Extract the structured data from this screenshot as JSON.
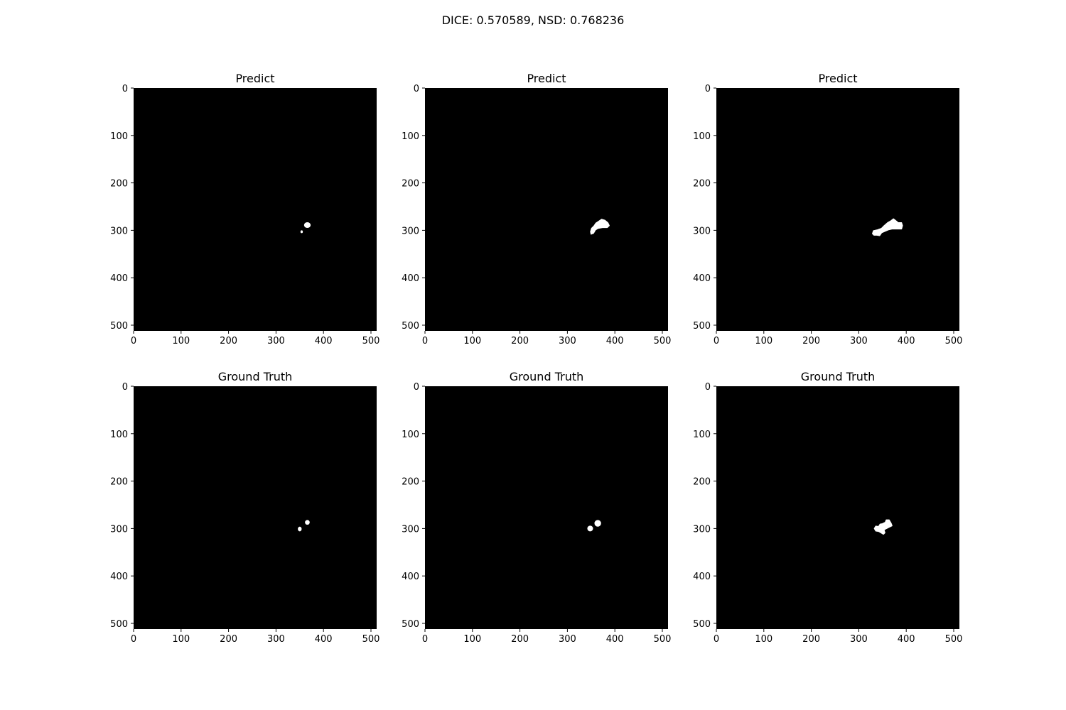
{
  "figure": {
    "suptitle": "DICE: 0.570589, NSD: 0.768236",
    "background_color": "#ffffff",
    "image_background": "#000000",
    "mask_color": "#ffffff"
  },
  "chart_data": [
    {
      "type": "image",
      "title": "Predict",
      "xlim": [
        0,
        512
      ],
      "ylim": [
        512,
        0
      ],
      "xticks": [
        0,
        100,
        200,
        300,
        400,
        500
      ],
      "yticks": [
        0,
        100,
        200,
        300,
        400,
        500
      ],
      "blobs": [
        {
          "shape": "ellipse",
          "cx": 366,
          "cy": 289,
          "rx": 7,
          "ry": 6
        },
        {
          "shape": "ellipse",
          "cx": 354,
          "cy": 303,
          "rx": 2.5,
          "ry": 3
        }
      ]
    },
    {
      "type": "image",
      "title": "Predict",
      "xlim": [
        0,
        512
      ],
      "ylim": [
        512,
        0
      ],
      "xticks": [
        0,
        100,
        200,
        300,
        400,
        500
      ],
      "yticks": [
        0,
        100,
        200,
        300,
        400,
        500
      ],
      "blobs": [
        {
          "shape": "polygon",
          "points": [
            [
              349,
              303
            ],
            [
              351,
              296
            ],
            [
              356,
              291
            ],
            [
              360,
              285
            ],
            [
              366,
              281
            ],
            [
              372,
              277
            ],
            [
              379,
              279
            ],
            [
              385,
              284
            ],
            [
              388,
              290
            ],
            [
              384,
              294
            ],
            [
              374,
              294
            ],
            [
              364,
              296
            ],
            [
              359,
              299
            ],
            [
              355,
              306
            ],
            [
              350,
              308
            ]
          ]
        }
      ]
    },
    {
      "type": "image",
      "title": "Predict",
      "xlim": [
        0,
        512
      ],
      "ylim": [
        512,
        0
      ],
      "xticks": [
        0,
        100,
        200,
        300,
        400,
        500
      ],
      "yticks": [
        0,
        100,
        200,
        300,
        400,
        500
      ],
      "blobs": [
        {
          "shape": "polygon",
          "points": [
            [
              329,
              307
            ],
            [
              331,
              301
            ],
            [
              340,
              299
            ],
            [
              348,
              296
            ],
            [
              354,
              290
            ],
            [
              361,
              284
            ],
            [
              368,
              280
            ],
            [
              373,
              276
            ],
            [
              378,
              280
            ],
            [
              383,
              284
            ],
            [
              390,
              284
            ],
            [
              392,
              290
            ],
            [
              390,
              297
            ],
            [
              380,
              297
            ],
            [
              370,
              297
            ],
            [
              362,
              299
            ],
            [
              355,
              302
            ],
            [
              348,
              305
            ],
            [
              344,
              311
            ],
            [
              338,
              310
            ],
            [
              332,
              310
            ]
          ]
        }
      ]
    },
    {
      "type": "image",
      "title": "Ground Truth",
      "xlim": [
        0,
        512
      ],
      "ylim": [
        512,
        0
      ],
      "xticks": [
        0,
        100,
        200,
        300,
        400,
        500
      ],
      "yticks": [
        0,
        100,
        200,
        300,
        400,
        500
      ],
      "blobs": [
        {
          "shape": "ellipse",
          "cx": 366,
          "cy": 287,
          "rx": 5,
          "ry": 5
        },
        {
          "shape": "ellipse",
          "cx": 350,
          "cy": 301,
          "rx": 4,
          "ry": 5
        }
      ]
    },
    {
      "type": "image",
      "title": "Ground Truth",
      "xlim": [
        0,
        512
      ],
      "ylim": [
        512,
        0
      ],
      "xticks": [
        0,
        100,
        200,
        300,
        400,
        500
      ],
      "yticks": [
        0,
        100,
        200,
        300,
        400,
        500
      ],
      "blobs": [
        {
          "shape": "ellipse",
          "cx": 364,
          "cy": 289,
          "rx": 7,
          "ry": 7
        },
        {
          "shape": "ellipse",
          "cx": 348,
          "cy": 300,
          "rx": 6,
          "ry": 6
        }
      ]
    },
    {
      "type": "image",
      "title": "Ground Truth",
      "xlim": [
        0,
        512
      ],
      "ylim": [
        512,
        0
      ],
      "xticks": [
        0,
        100,
        200,
        300,
        400,
        500
      ],
      "yticks": [
        0,
        100,
        200,
        300,
        400,
        500
      ],
      "blobs": [
        {
          "shape": "polygon",
          "points": [
            [
              333,
              300
            ],
            [
              336,
              295
            ],
            [
              342,
              296
            ],
            [
              345,
              291
            ],
            [
              350,
              290
            ],
            [
              356,
              287
            ],
            [
              358,
              282
            ],
            [
              364,
              282
            ],
            [
              368,
              289
            ],
            [
              370,
              294
            ],
            [
              364,
              297
            ],
            [
              358,
              300
            ],
            [
              353,
              303
            ],
            [
              355,
              309
            ],
            [
              352,
              312
            ],
            [
              347,
              309
            ],
            [
              342,
              306
            ],
            [
              336,
              305
            ]
          ]
        }
      ]
    }
  ]
}
